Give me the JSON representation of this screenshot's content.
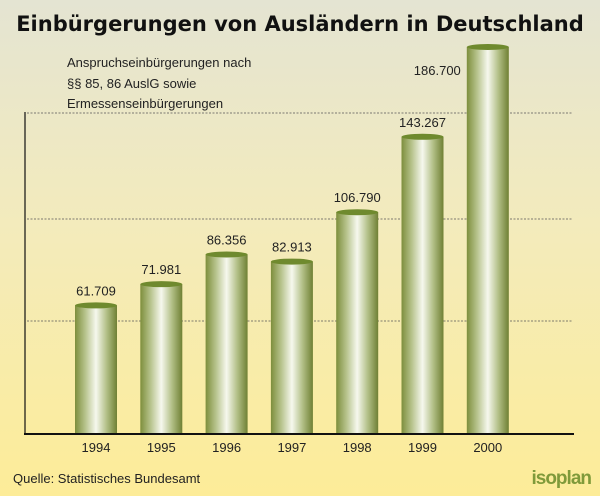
{
  "chart_data": {
    "type": "bar",
    "title": "Einbürgerungen von Ausländern in Deutschland",
    "subtitle_lines": [
      "Anspruchseinbürgerungen nach",
      "§§ 85, 86 AuslG sowie",
      "Ermessenseinbürgerungen"
    ],
    "categories": [
      "1994",
      "1995",
      "1996",
      "1997",
      "1998",
      "1999",
      "2000"
    ],
    "values": [
      61709,
      71981,
      86356,
      82913,
      106790,
      143267,
      186700
    ],
    "value_labels": [
      "61.709",
      "71.981",
      "86.356",
      "82.913",
      "106.790",
      "143.267",
      "186.700"
    ],
    "xlabel": "",
    "ylabel": "",
    "ylim": [
      0,
      186700
    ],
    "grid": true,
    "source": "Quelle: Statistisches Bundesamt",
    "logo": "isoplan",
    "colors": {
      "bar": "#8a9a4a",
      "bar_light": "#f4f6ea",
      "bg_top": "#e4e4d2",
      "bg_bottom": "#fdec98"
    }
  }
}
